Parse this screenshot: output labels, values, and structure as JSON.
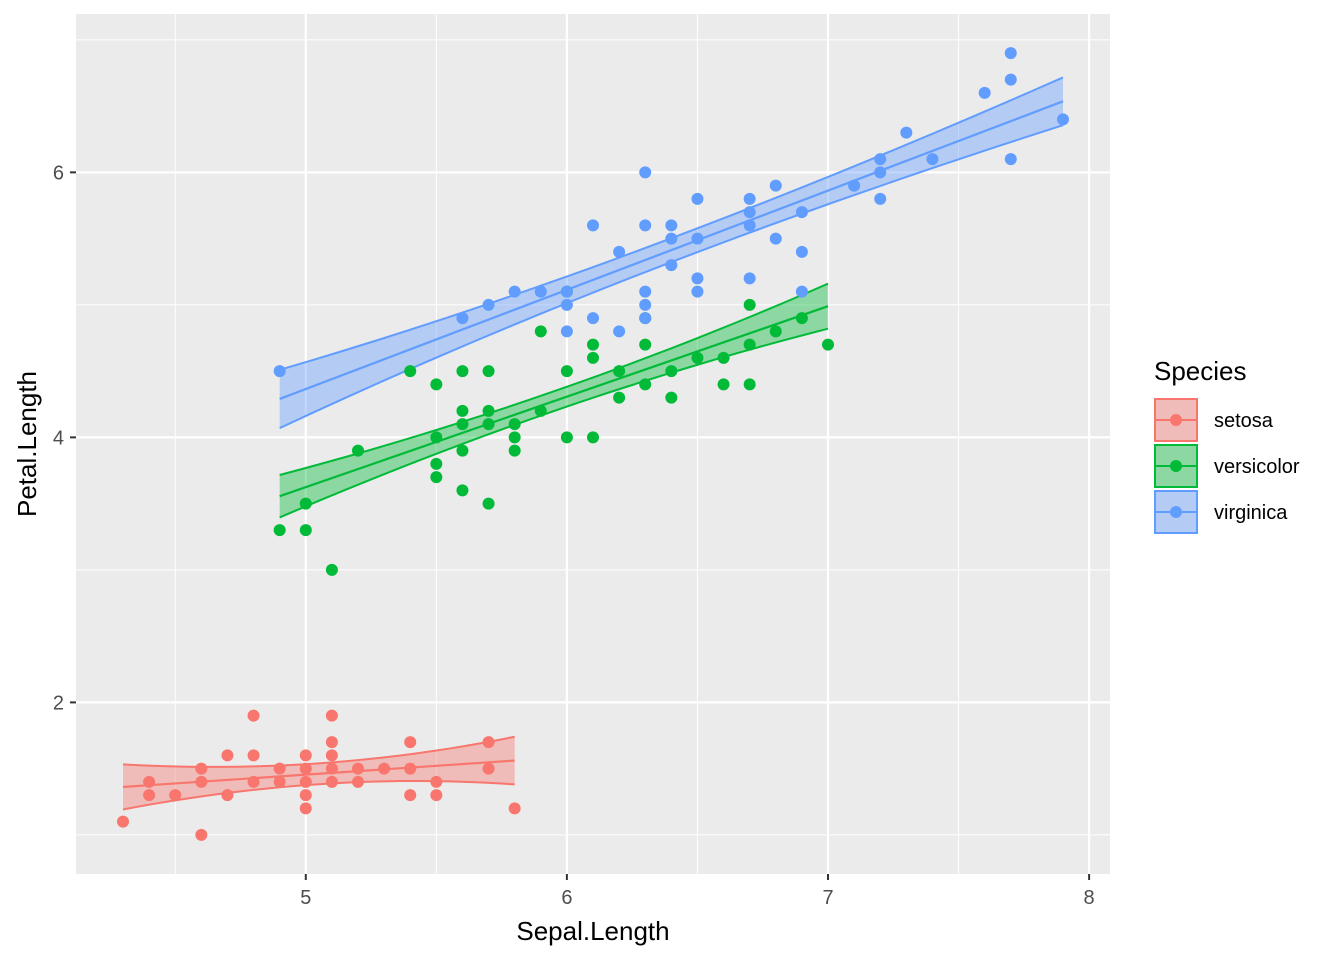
{
  "chart_data": {
    "type": "scatter",
    "xlabel": "Sepal.Length",
    "ylabel": "Petal.Length",
    "xlim": [
      4.12,
      8.08
    ],
    "ylim": [
      0.705,
      7.195
    ],
    "x_ticks": [
      5,
      6,
      7,
      8
    ],
    "y_ticks": [
      2,
      4,
      6
    ],
    "x_tick_labels": [
      "5",
      "6",
      "7",
      "8"
    ],
    "y_tick_labels": [
      "2",
      "4",
      "6"
    ],
    "grid": true,
    "legend": {
      "title": "Species",
      "position": "right"
    },
    "series": [
      {
        "name": "setosa",
        "color": "#F8766D",
        "fit": {
          "x_start": 4.3,
          "x_end": 5.8,
          "y_start": 1.362,
          "y_end": 1.561,
          "se_start": 0.17,
          "se_end": 0.18
        },
        "points": [
          [
            4.3,
            1.1
          ],
          [
            4.4,
            1.4
          ],
          [
            4.4,
            1.3
          ],
          [
            4.5,
            1.3
          ],
          [
            4.6,
            1.5
          ],
          [
            4.6,
            1.4
          ],
          [
            4.6,
            1.0
          ],
          [
            4.7,
            1.6
          ],
          [
            4.7,
            1.3
          ],
          [
            4.8,
            1.9
          ],
          [
            4.8,
            1.6
          ],
          [
            4.8,
            1.4
          ],
          [
            4.9,
            1.5
          ],
          [
            4.9,
            1.4
          ],
          [
            5.0,
            1.6
          ],
          [
            5.0,
            1.5
          ],
          [
            5.0,
            1.4
          ],
          [
            5.0,
            1.3
          ],
          [
            5.0,
            1.2
          ],
          [
            5.1,
            1.9
          ],
          [
            5.1,
            1.7
          ],
          [
            5.1,
            1.6
          ],
          [
            5.1,
            1.5
          ],
          [
            5.1,
            1.4
          ],
          [
            5.2,
            1.5
          ],
          [
            5.2,
            1.4
          ],
          [
            5.3,
            1.5
          ],
          [
            5.4,
            1.7
          ],
          [
            5.4,
            1.5
          ],
          [
            5.4,
            1.3
          ],
          [
            5.5,
            1.4
          ],
          [
            5.5,
            1.3
          ],
          [
            5.7,
            1.7
          ],
          [
            5.7,
            1.5
          ],
          [
            5.8,
            1.2
          ]
        ]
      },
      {
        "name": "versicolor",
        "color": "#00BA38",
        "fit": {
          "x_start": 4.9,
          "x_end": 7.0,
          "y_start": 3.556,
          "y_end": 4.99,
          "se_start": 0.16,
          "se_end": 0.17
        },
        "points": [
          [
            4.9,
            3.3
          ],
          [
            5.0,
            3.5
          ],
          [
            5.0,
            3.3
          ],
          [
            5.1,
            3.0
          ],
          [
            5.2,
            3.9
          ],
          [
            5.4,
            4.5
          ],
          [
            5.5,
            4.4
          ],
          [
            5.5,
            4.0
          ],
          [
            5.5,
            3.8
          ],
          [
            5.5,
            3.7
          ],
          [
            5.6,
            4.5
          ],
          [
            5.6,
            4.2
          ],
          [
            5.6,
            4.1
          ],
          [
            5.6,
            3.9
          ],
          [
            5.6,
            3.6
          ],
          [
            5.7,
            4.5
          ],
          [
            5.7,
            4.2
          ],
          [
            5.7,
            4.1
          ],
          [
            5.7,
            3.5
          ],
          [
            5.8,
            4.1
          ],
          [
            5.8,
            4.0
          ],
          [
            5.8,
            3.9
          ],
          [
            5.9,
            4.8
          ],
          [
            5.9,
            4.2
          ],
          [
            6.0,
            5.1
          ],
          [
            6.0,
            4.5
          ],
          [
            6.0,
            4.0
          ],
          [
            6.1,
            4.7
          ],
          [
            6.1,
            4.6
          ],
          [
            6.1,
            4.0
          ],
          [
            6.2,
            4.5
          ],
          [
            6.2,
            4.3
          ],
          [
            6.3,
            4.9
          ],
          [
            6.3,
            4.7
          ],
          [
            6.3,
            4.4
          ],
          [
            6.4,
            4.5
          ],
          [
            6.4,
            4.3
          ],
          [
            6.5,
            4.6
          ],
          [
            6.6,
            4.6
          ],
          [
            6.6,
            4.4
          ],
          [
            6.7,
            5.0
          ],
          [
            6.7,
            4.7
          ],
          [
            6.7,
            4.4
          ],
          [
            6.8,
            4.8
          ],
          [
            6.9,
            4.9
          ],
          [
            7.0,
            4.7
          ]
        ]
      },
      {
        "name": "virginica",
        "color": "#619CFF",
        "fit": {
          "x_start": 4.9,
          "x_end": 7.9,
          "y_start": 4.29,
          "y_end": 6.536,
          "se_start": 0.22,
          "se_end": 0.18
        },
        "points": [
          [
            4.9,
            4.5
          ],
          [
            5.6,
            4.9
          ],
          [
            5.7,
            5.0
          ],
          [
            5.8,
            5.1
          ],
          [
            5.9,
            5.1
          ],
          [
            6.0,
            5.1
          ],
          [
            6.0,
            5.0
          ],
          [
            6.0,
            4.8
          ],
          [
            6.1,
            5.6
          ],
          [
            6.1,
            4.9
          ],
          [
            6.2,
            5.4
          ],
          [
            6.2,
            4.8
          ],
          [
            6.3,
            6.0
          ],
          [
            6.3,
            5.6
          ],
          [
            6.3,
            5.1
          ],
          [
            6.3,
            5.0
          ],
          [
            6.3,
            4.9
          ],
          [
            6.4,
            5.6
          ],
          [
            6.4,
            5.5
          ],
          [
            6.4,
            5.3
          ],
          [
            6.5,
            5.8
          ],
          [
            6.5,
            5.5
          ],
          [
            6.5,
            5.2
          ],
          [
            6.5,
            5.1
          ],
          [
            6.7,
            5.8
          ],
          [
            6.7,
            5.7
          ],
          [
            6.7,
            5.6
          ],
          [
            6.7,
            5.2
          ],
          [
            6.8,
            5.9
          ],
          [
            6.8,
            5.5
          ],
          [
            6.9,
            5.7
          ],
          [
            6.9,
            5.4
          ],
          [
            6.9,
            5.1
          ],
          [
            7.1,
            5.9
          ],
          [
            7.2,
            6.1
          ],
          [
            7.2,
            6.0
          ],
          [
            7.2,
            5.8
          ],
          [
            7.3,
            6.3
          ],
          [
            7.4,
            6.1
          ],
          [
            7.6,
            6.6
          ],
          [
            7.7,
            6.9
          ],
          [
            7.7,
            6.7
          ],
          [
            7.7,
            6.1
          ],
          [
            7.9,
            6.4
          ]
        ]
      }
    ]
  }
}
